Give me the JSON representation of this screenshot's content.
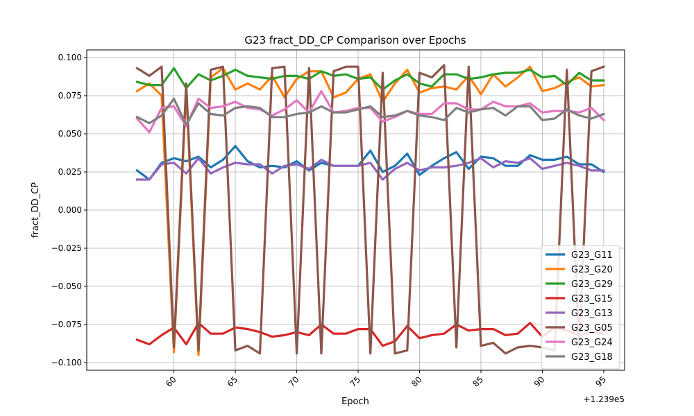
{
  "chart_data": {
    "type": "line",
    "title": "G23 fract_DD_CP Comparison over Epochs",
    "xlabel": "Epoch",
    "ylabel": "fract_DD_CP",
    "x_offset_label": "+1.239e5",
    "x_offset": 123900,
    "xlim": [
      123952.9,
      123996.7
    ],
    "ylim": [
      -0.105,
      0.105
    ],
    "x_ticks": [
      123960,
      123965,
      123970,
      123975,
      123980,
      123985,
      123990,
      123995
    ],
    "x_tick_labels": [
      "60",
      "65",
      "70",
      "75",
      "80",
      "85",
      "90",
      "95"
    ],
    "y_ticks": [
      -0.1,
      -0.075,
      -0.05,
      -0.025,
      0.0,
      0.025,
      0.05,
      0.075,
      0.1
    ],
    "y_tick_labels": [
      "−0.100",
      "−0.075",
      "−0.050",
      "−0.025",
      "0.000",
      "0.025",
      "0.050",
      "0.075",
      "0.100"
    ],
    "grid": true,
    "legend_position": "lower-right",
    "x": [
      123957,
      123958,
      123959,
      123960,
      123961,
      123962,
      123963,
      123964,
      123965,
      123966,
      123967,
      123968,
      123969,
      123970,
      123971,
      123972,
      123973,
      123974,
      123975,
      123976,
      123977,
      123978,
      123979,
      123980,
      123981,
      123982,
      123983,
      123984,
      123985,
      123986,
      123987,
      123988,
      123989,
      123990,
      123991,
      123992,
      123993,
      123994,
      123995
    ],
    "series": [
      {
        "name": "G23_G11",
        "color": "#1f77b4",
        "values": [
          0.026,
          0.02,
          0.031,
          0.034,
          0.032,
          0.035,
          0.028,
          0.033,
          0.042,
          0.032,
          0.028,
          0.029,
          0.028,
          0.032,
          0.026,
          0.031,
          0.029,
          0.029,
          0.029,
          0.039,
          0.025,
          0.029,
          0.037,
          0.023,
          0.029,
          0.034,
          0.038,
          0.027,
          0.035,
          0.034,
          0.029,
          0.029,
          0.036,
          0.033,
          0.033,
          0.035,
          0.03,
          0.03,
          0.025
        ]
      },
      {
        "name": "G23_G20",
        "color": "#ff7f0e",
        "values": [
          0.078,
          0.083,
          0.075,
          -0.093,
          0.079,
          -0.095,
          0.087,
          0.093,
          0.079,
          0.083,
          0.079,
          0.088,
          0.074,
          0.086,
          0.091,
          0.091,
          0.074,
          0.077,
          0.086,
          0.089,
          0.071,
          0.083,
          0.092,
          0.077,
          0.08,
          0.081,
          0.079,
          0.088,
          0.076,
          0.089,
          0.081,
          0.087,
          0.094,
          0.078,
          0.08,
          0.084,
          0.087,
          0.081,
          0.082
        ]
      },
      {
        "name": "G23_G29",
        "color": "#2ca02c",
        "values": [
          0.084,
          0.082,
          0.082,
          0.093,
          0.08,
          0.089,
          0.085,
          0.088,
          0.092,
          0.088,
          0.087,
          0.086,
          0.088,
          0.088,
          0.086,
          0.091,
          0.088,
          0.089,
          0.086,
          0.087,
          0.079,
          0.085,
          0.089,
          0.083,
          0.081,
          0.089,
          0.089,
          0.086,
          0.087,
          0.089,
          0.09,
          0.09,
          0.092,
          0.087,
          0.088,
          0.082,
          0.09,
          0.085,
          0.085
        ]
      },
      {
        "name": "G23_G15",
        "color": "#d62728",
        "values": [
          -0.085,
          -0.088,
          -0.082,
          -0.077,
          -0.088,
          -0.074,
          -0.081,
          -0.081,
          -0.077,
          -0.078,
          -0.08,
          -0.083,
          -0.082,
          -0.08,
          -0.082,
          -0.075,
          -0.081,
          -0.081,
          -0.078,
          -0.078,
          -0.089,
          -0.086,
          -0.076,
          -0.084,
          -0.082,
          -0.081,
          -0.075,
          -0.079,
          -0.078,
          -0.078,
          -0.082,
          -0.081,
          -0.074,
          -0.083,
          -0.077,
          -0.079,
          -0.082,
          -0.08,
          -0.081
        ]
      },
      {
        "name": "G23_G13",
        "color": "#9467bd",
        "values": [
          0.02,
          0.02,
          0.03,
          0.031,
          0.024,
          0.034,
          0.024,
          0.028,
          0.031,
          0.03,
          0.03,
          0.024,
          0.029,
          0.03,
          0.027,
          0.033,
          0.029,
          0.029,
          0.029,
          0.031,
          0.02,
          0.027,
          0.031,
          0.026,
          0.028,
          0.028,
          0.029,
          0.031,
          0.034,
          0.028,
          0.032,
          0.031,
          0.034,
          0.027,
          0.029,
          0.031,
          0.029,
          0.026,
          0.026
        ]
      },
      {
        "name": "G23_G05",
        "color": "#8c564b",
        "values": [
          0.093,
          0.088,
          0.094,
          -0.09,
          0.083,
          -0.092,
          0.092,
          0.094,
          -0.092,
          -0.089,
          -0.094,
          0.093,
          0.094,
          -0.094,
          0.093,
          -0.094,
          0.091,
          0.094,
          0.094,
          -0.094,
          0.09,
          -0.094,
          -0.092,
          0.09,
          0.087,
          0.095,
          -0.09,
          0.094,
          -0.089,
          -0.087,
          -0.094,
          -0.09,
          -0.089,
          -0.09,
          -0.092,
          0.092,
          -0.09,
          0.091,
          0.094
        ]
      },
      {
        "name": "G23_G24",
        "color": "#e377c2",
        "values": [
          0.06,
          0.051,
          0.067,
          0.068,
          0.055,
          0.073,
          0.067,
          0.068,
          0.071,
          0.067,
          0.066,
          0.062,
          0.066,
          0.072,
          0.064,
          0.078,
          0.064,
          0.065,
          0.067,
          0.067,
          0.058,
          0.061,
          0.065,
          0.063,
          0.063,
          0.07,
          0.07,
          0.066,
          0.066,
          0.071,
          0.068,
          0.068,
          0.07,
          0.064,
          0.065,
          0.065,
          0.064,
          0.067,
          0.059
        ]
      },
      {
        "name": "G23_G18",
        "color": "#7f7f7f",
        "values": [
          0.061,
          0.057,
          0.062,
          0.073,
          0.056,
          0.07,
          0.063,
          0.062,
          0.067,
          0.068,
          0.067,
          0.061,
          0.061,
          0.063,
          0.064,
          0.068,
          0.064,
          0.064,
          0.066,
          0.068,
          0.061,
          0.062,
          0.065,
          0.062,
          0.061,
          0.059,
          0.067,
          0.064,
          0.066,
          0.067,
          0.062,
          0.068,
          0.068,
          0.059,
          0.06,
          0.066,
          0.062,
          0.06,
          0.063
        ]
      }
    ]
  }
}
